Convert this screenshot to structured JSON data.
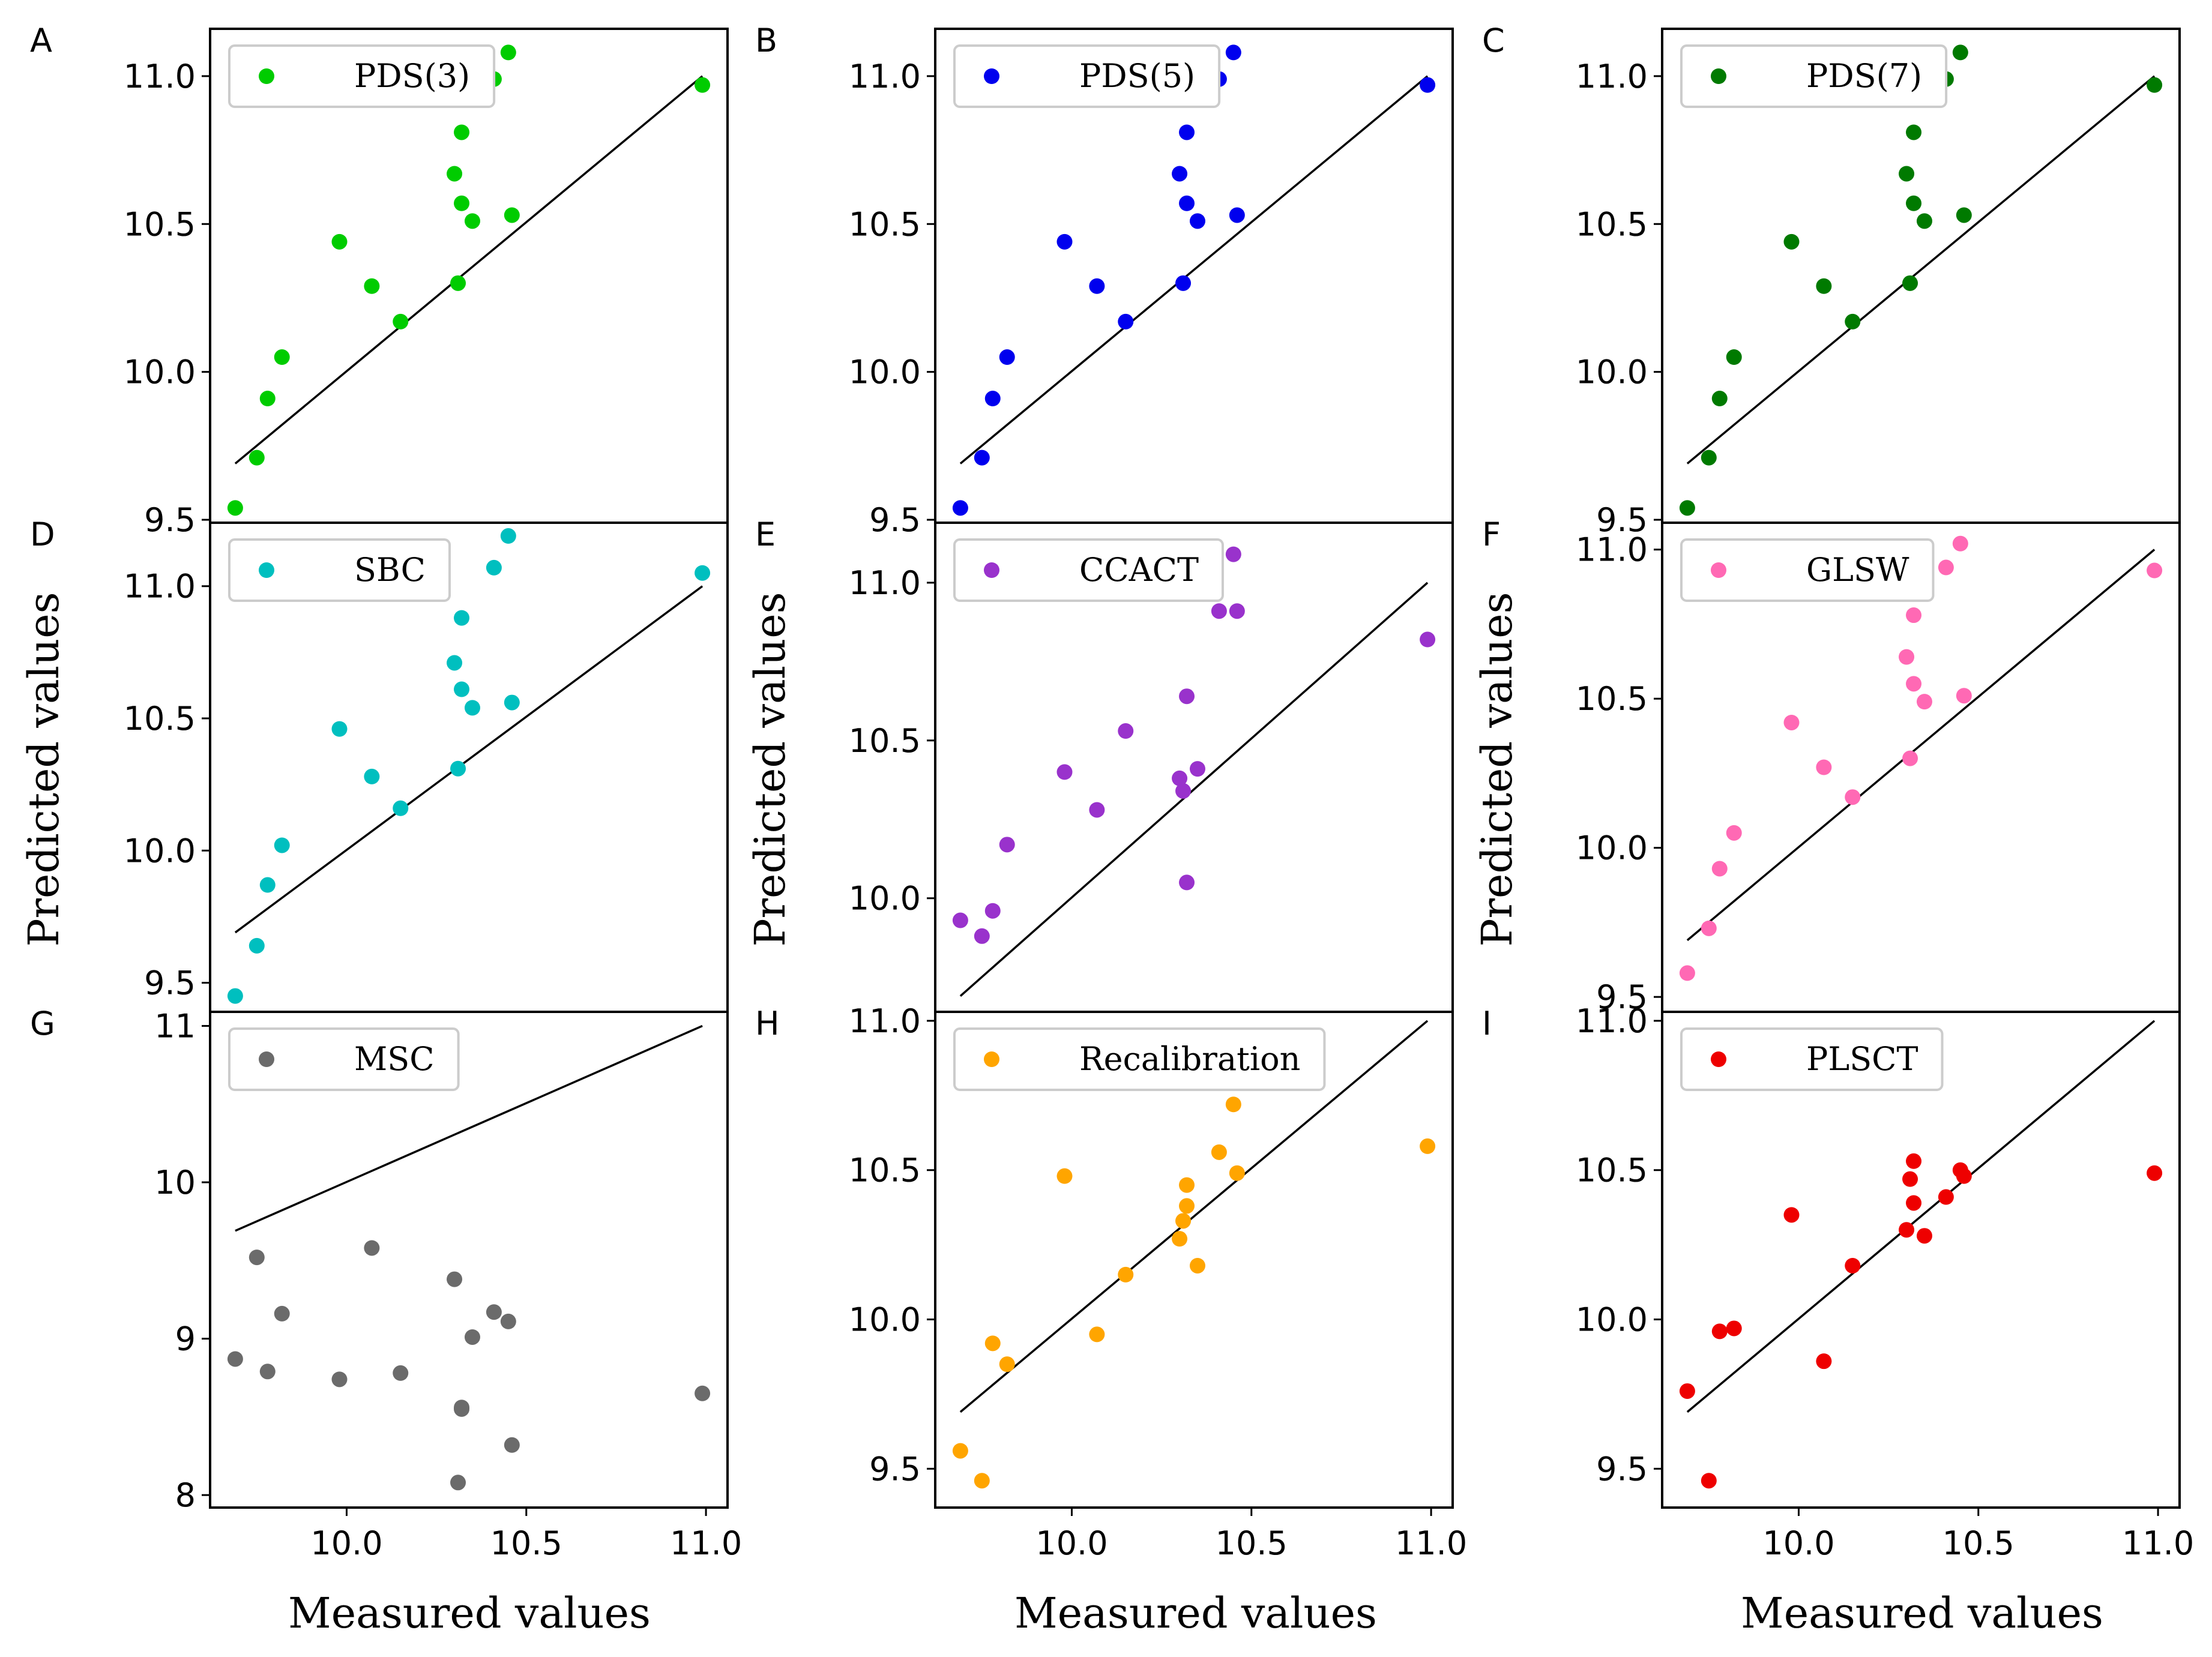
{
  "figure": {
    "xlabel": "Measured values",
    "ylabel": "Predicted values"
  },
  "chart_data": [
    {
      "type": "scatter",
      "panel": "A",
      "legend": "PDS(3)",
      "color": "#00cc00",
      "xlim": [
        9.62,
        11.06
      ],
      "ylim": [
        9.49,
        11.16
      ],
      "xticks": [],
      "yticks": [
        "9.5",
        "10.0",
        "10.5",
        "11.0"
      ],
      "line": [
        [
          9.69,
          9.69
        ],
        [
          10.99,
          11.0
        ]
      ],
      "x": [
        9.69,
        9.75,
        9.78,
        9.82,
        9.98,
        10.07,
        10.15,
        10.3,
        10.31,
        10.32,
        10.32,
        10.35,
        10.41,
        10.45,
        10.46,
        10.99
      ],
      "y": [
        9.54,
        9.71,
        9.91,
        10.05,
        10.44,
        10.29,
        10.17,
        10.67,
        10.3,
        10.81,
        10.57,
        10.51,
        10.99,
        11.08,
        10.53,
        10.97
      ]
    },
    {
      "type": "scatter",
      "panel": "B",
      "legend": "PDS(5)",
      "color": "#0000ee",
      "xlim": [
        9.62,
        11.06
      ],
      "ylim": [
        9.49,
        11.16
      ],
      "xticks": [],
      "yticks": [
        "9.5",
        "10.0",
        "10.5",
        "11.0"
      ],
      "line": [
        [
          9.69,
          9.69
        ],
        [
          10.99,
          11.0
        ]
      ],
      "x": [
        9.69,
        9.75,
        9.78,
        9.82,
        9.98,
        10.07,
        10.15,
        10.3,
        10.31,
        10.32,
        10.32,
        10.35,
        10.41,
        10.45,
        10.46,
        10.99
      ],
      "y": [
        9.54,
        9.71,
        9.91,
        10.05,
        10.44,
        10.29,
        10.17,
        10.67,
        10.3,
        10.81,
        10.57,
        10.51,
        10.99,
        11.08,
        10.53,
        10.97
      ]
    },
    {
      "type": "scatter",
      "panel": "C",
      "legend": "PDS(7)",
      "color": "#007a00",
      "xlim": [
        9.62,
        11.06
      ],
      "ylim": [
        9.49,
        11.16
      ],
      "xticks": [],
      "yticks": [
        "9.5",
        "10.0",
        "10.5",
        "11.0"
      ],
      "line": [
        [
          9.69,
          9.69
        ],
        [
          10.99,
          11.0
        ]
      ],
      "x": [
        9.69,
        9.75,
        9.78,
        9.82,
        9.98,
        10.07,
        10.15,
        10.3,
        10.31,
        10.32,
        10.32,
        10.35,
        10.41,
        10.45,
        10.46,
        10.99
      ],
      "y": [
        9.54,
        9.71,
        9.91,
        10.05,
        10.44,
        10.29,
        10.17,
        10.67,
        10.3,
        10.81,
        10.57,
        10.51,
        10.99,
        11.08,
        10.53,
        10.97
      ]
    },
    {
      "type": "scatter",
      "panel": "D",
      "legend": "SBC",
      "color": "#00bfbf",
      "xlim": [
        9.62,
        11.06
      ],
      "ylim": [
        9.39,
        11.24
      ],
      "xticks": [],
      "yticks": [
        "9.5",
        "10.0",
        "10.5",
        "11.0"
      ],
      "line": [
        [
          9.69,
          9.69
        ],
        [
          10.99,
          11.0
        ]
      ],
      "x": [
        9.69,
        9.75,
        9.78,
        9.82,
        9.98,
        10.07,
        10.15,
        10.3,
        10.31,
        10.32,
        10.32,
        10.35,
        10.41,
        10.45,
        10.46,
        10.99
      ],
      "y": [
        9.45,
        9.64,
        9.87,
        10.02,
        10.46,
        10.28,
        10.16,
        10.71,
        10.31,
        10.88,
        10.61,
        10.54,
        11.07,
        11.19,
        10.56,
        11.05
      ]
    },
    {
      "type": "scatter",
      "panel": "E",
      "legend": "CCACT",
      "color": "#9932cc",
      "xlim": [
        9.62,
        11.06
      ],
      "ylim": [
        9.64,
        11.19
      ],
      "xticks": [],
      "yticks": [
        "10.0",
        "10.5",
        "11.0"
      ],
      "line": [
        [
          9.69,
          9.69
        ],
        [
          10.99,
          11.0
        ]
      ],
      "x": [
        9.69,
        9.75,
        9.78,
        9.82,
        9.98,
        10.07,
        10.15,
        10.3,
        10.31,
        10.32,
        10.32,
        10.35,
        10.41,
        10.45,
        10.46,
        10.99
      ],
      "y": [
        9.93,
        9.88,
        9.96,
        10.17,
        10.4,
        10.28,
        10.53,
        10.38,
        10.34,
        10.05,
        10.64,
        10.41,
        10.91,
        11.09,
        10.91,
        10.82
      ]
    },
    {
      "type": "scatter",
      "panel": "F",
      "legend": "GLSW",
      "color": "#ff69b4",
      "xlim": [
        9.62,
        11.06
      ],
      "ylim": [
        9.45,
        11.09
      ],
      "xticks": [],
      "yticks": [
        "9.5",
        "10.0",
        "10.5",
        "11.0"
      ],
      "line": [
        [
          9.69,
          9.69
        ],
        [
          10.99,
          11.0
        ]
      ],
      "x": [
        9.69,
        9.75,
        9.78,
        9.82,
        9.98,
        10.07,
        10.15,
        10.3,
        10.31,
        10.32,
        10.32,
        10.35,
        10.41,
        10.45,
        10.46,
        10.99
      ],
      "y": [
        9.58,
        9.73,
        9.93,
        10.05,
        10.42,
        10.27,
        10.17,
        10.64,
        10.3,
        10.78,
        10.55,
        10.49,
        10.94,
        11.02,
        10.51,
        10.93
      ]
    },
    {
      "type": "scatter",
      "panel": "G",
      "legend": "MSC",
      "color": "#6b6b6b",
      "xlim": [
        9.62,
        11.06
      ],
      "ylim": [
        7.92,
        11.09
      ],
      "xticks": [
        "10.0",
        "10.5",
        "11.0"
      ],
      "yticks": [
        "8",
        "9",
        "10",
        "11"
      ],
      "line": [
        [
          9.69,
          9.69
        ],
        [
          10.99,
          11.0
        ]
      ],
      "x": [
        9.69,
        9.75,
        9.78,
        9.82,
        9.98,
        10.07,
        10.15,
        10.3,
        10.31,
        10.32,
        10.32,
        10.35,
        10.41,
        10.45,
        10.46,
        10.99
      ],
      "y": [
        8.87,
        9.52,
        8.79,
        9.16,
        8.74,
        9.58,
        8.78,
        9.38,
        8.08,
        8.55,
        8.56,
        9.01,
        9.17,
        9.11,
        8.32,
        8.65
      ]
    },
    {
      "type": "scatter",
      "panel": "H",
      "legend": "Recalibration",
      "color": "#ffa500",
      "xlim": [
        9.62,
        11.06
      ],
      "ylim": [
        9.37,
        11.03
      ],
      "xticks": [
        "10.0",
        "10.5",
        "11.0"
      ],
      "yticks": [
        "9.5",
        "10.0",
        "10.5",
        "11.0"
      ],
      "line": [
        [
          9.69,
          9.69
        ],
        [
          10.99,
          11.0
        ]
      ],
      "x": [
        9.69,
        9.75,
        9.78,
        9.82,
        9.98,
        10.07,
        10.15,
        10.3,
        10.31,
        10.32,
        10.32,
        10.35,
        10.41,
        10.45,
        10.46,
        10.99
      ],
      "y": [
        9.56,
        9.46,
        9.92,
        9.85,
        10.48,
        9.95,
        10.15,
        10.27,
        10.33,
        10.38,
        10.45,
        10.18,
        10.56,
        10.72,
        10.49,
        10.58
      ]
    },
    {
      "type": "scatter",
      "panel": "I",
      "legend": "PLSCT",
      "color": "#ee0000",
      "xlim": [
        9.62,
        11.06
      ],
      "ylim": [
        9.37,
        11.03
      ],
      "xticks": [
        "10.0",
        "10.5",
        "11.0"
      ],
      "yticks": [
        "9.5",
        "10.0",
        "10.5",
        "11.0"
      ],
      "line": [
        [
          9.69,
          9.69
        ],
        [
          10.99,
          11.0
        ]
      ],
      "x": [
        9.69,
        9.75,
        9.78,
        9.82,
        9.98,
        10.07,
        10.15,
        10.3,
        10.31,
        10.32,
        10.32,
        10.35,
        10.41,
        10.45,
        10.46,
        10.99
      ],
      "y": [
        9.76,
        9.46,
        9.96,
        9.97,
        10.35,
        9.86,
        10.18,
        10.3,
        10.47,
        10.53,
        10.39,
        10.28,
        10.41,
        10.5,
        10.48,
        10.49
      ]
    }
  ]
}
